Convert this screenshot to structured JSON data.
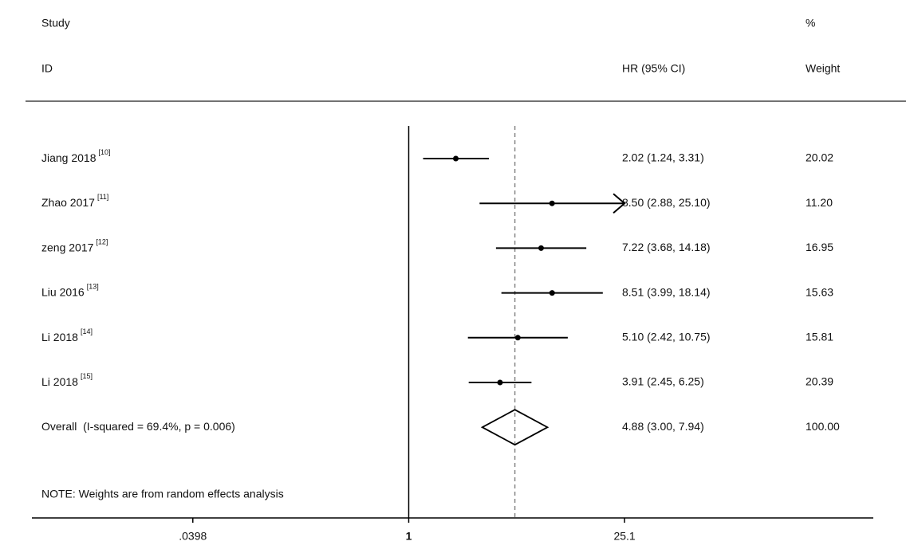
{
  "chart_data": {
    "type": "forest",
    "columns": {
      "study": "Study",
      "id": "ID",
      "ci": "HR (95% CI)",
      "pct": "%",
      "weight": "Weight"
    },
    "categories": [
      "Jiang 2018",
      "Zhao 2017",
      "zeng 2017",
      "Liu 2016",
      "Li 2018",
      "Li 2018"
    ],
    "refs": [
      "[10]",
      "[11]",
      "[12]",
      "[13]",
      "[14]",
      "[15]"
    ],
    "values": [
      2.02,
      8.5,
      7.22,
      8.51,
      5.1,
      3.91
    ],
    "lower": [
      1.24,
      2.88,
      3.68,
      3.99,
      2.42,
      2.45
    ],
    "upper": [
      3.31,
      25.1,
      14.18,
      18.14,
      10.75,
      6.25
    ],
    "value_labels": [
      "2.02 (1.24, 3.31)",
      "8.50 (2.88, 25.10)",
      "7.22 (3.68, 14.18)",
      "8.51 (3.99, 18.14)",
      "5.10 (2.42, 10.75)",
      "3.91 (2.45, 6.25)"
    ],
    "weights": [
      "20.02",
      "11.20",
      "16.95",
      "15.63",
      "15.81",
      "20.39"
    ],
    "overall": {
      "label": "Overall  (I-squared = 69.4%, p = 0.006)",
      "value": 4.88,
      "lower": 3.0,
      "upper": 7.94,
      "value_label": "4.88 (3.00, 7.94)",
      "weight": "100.00"
    },
    "note": "NOTE: Weights are from random effects analysis",
    "log_scale": true,
    "xlim": [
      0.0036,
      1030
    ],
    "xticks": [
      {
        "value": 0.0398,
        "label": ".0398"
      },
      1,
      25.1
    ],
    "color": "#000000"
  }
}
